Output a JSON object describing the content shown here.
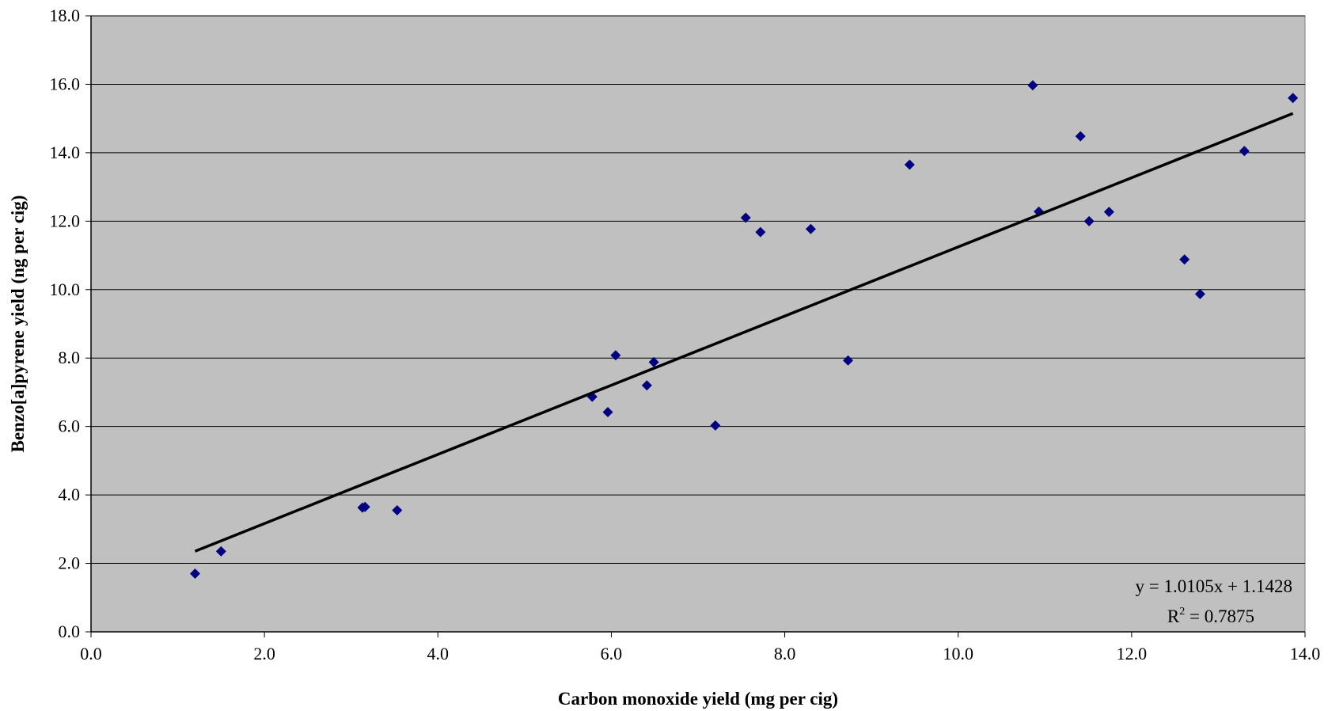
{
  "chart_data": {
    "type": "scatter",
    "title": "",
    "xlabel": "Carbon monoxide yield (mg per cig)",
    "ylabel": "Benzo[a]pyrene yield (ng per cig)",
    "xlim": [
      0,
      14
    ],
    "ylim": [
      0,
      18
    ],
    "x_ticks": [
      "0.0",
      "2.0",
      "4.0",
      "6.0",
      "8.0",
      "10.0",
      "12.0",
      "14.0"
    ],
    "y_ticks": [
      "0.0",
      "2.0",
      "4.0",
      "6.0",
      "8.0",
      "10.0",
      "12.0",
      "14.0",
      "16.0",
      "18.0"
    ],
    "grid": "horizontal",
    "colors": {
      "plot_background": "#c0c0c0",
      "marker": "#000080",
      "trendline": "#000000",
      "gridline": "#000000"
    },
    "series": [
      {
        "marker": "diamond",
        "points": [
          {
            "x": 1.2,
            "y": 1.7
          },
          {
            "x": 1.5,
            "y": 2.35
          },
          {
            "x": 3.13,
            "y": 3.63
          },
          {
            "x": 3.16,
            "y": 3.65
          },
          {
            "x": 3.53,
            "y": 3.55
          },
          {
            "x": 5.78,
            "y": 6.87
          },
          {
            "x": 5.96,
            "y": 6.42
          },
          {
            "x": 6.05,
            "y": 8.08
          },
          {
            "x": 6.41,
            "y": 7.2
          },
          {
            "x": 6.49,
            "y": 7.88
          },
          {
            "x": 7.2,
            "y": 6.03
          },
          {
            "x": 7.55,
            "y": 12.1
          },
          {
            "x": 7.72,
            "y": 11.68
          },
          {
            "x": 8.3,
            "y": 11.77
          },
          {
            "x": 8.73,
            "y": 7.93
          },
          {
            "x": 9.44,
            "y": 13.65
          },
          {
            "x": 10.86,
            "y": 15.97
          },
          {
            "x": 10.93,
            "y": 12.28
          },
          {
            "x": 11.41,
            "y": 14.48
          },
          {
            "x": 11.51,
            "y": 12.0
          },
          {
            "x": 11.74,
            "y": 12.27
          },
          {
            "x": 12.61,
            "y": 10.88
          },
          {
            "x": 12.79,
            "y": 9.87
          },
          {
            "x": 13.3,
            "y": 14.05
          },
          {
            "x": 13.86,
            "y": 15.6
          }
        ]
      }
    ],
    "trendline": {
      "type": "linear",
      "slope": 1.0105,
      "intercept": 1.1428,
      "x_range": [
        1.2,
        13.86
      ],
      "equation_label": "y = 1.0105x + 1.1428",
      "r2_label_prefix": "R",
      "r2_label_sup": "2",
      "r2_label_value": " = 0.7875",
      "label_position": "bottom-right"
    }
  }
}
